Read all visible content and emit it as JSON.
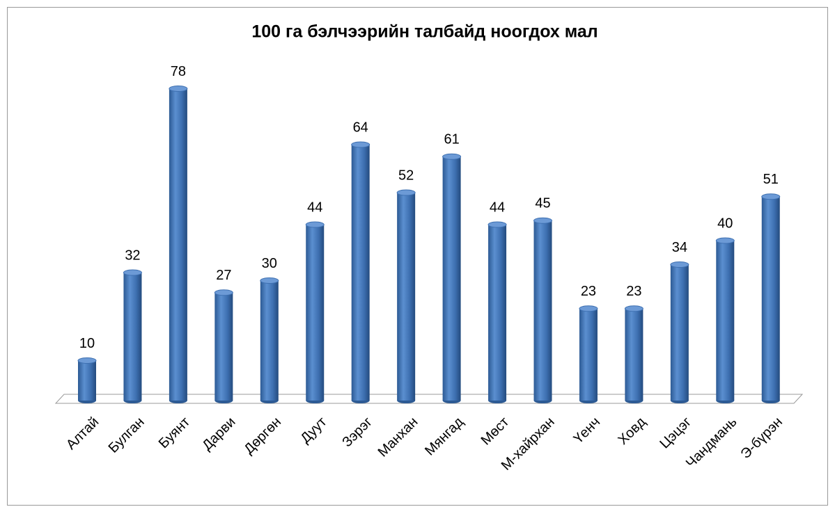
{
  "chart_data": {
    "type": "bar",
    "title": "100 га бэлчээрийн талбайд ноогдох мал",
    "categories": [
      "Алтай",
      "Булган",
      "Буянт",
      "Дарви",
      "Дөргөн",
      "Дуут",
      "Зэрэг",
      "Манхан",
      "Мянгад",
      "Мөст",
      "М-хайрхан",
      "Үенч",
      "Ховд",
      "Цэцэг",
      "Чандмань",
      "Э-бүрэн"
    ],
    "values": [
      10,
      32,
      78,
      27,
      30,
      44,
      64,
      52,
      61,
      44,
      45,
      23,
      23,
      34,
      40,
      51
    ],
    "color": "#4a7ebb"
  }
}
